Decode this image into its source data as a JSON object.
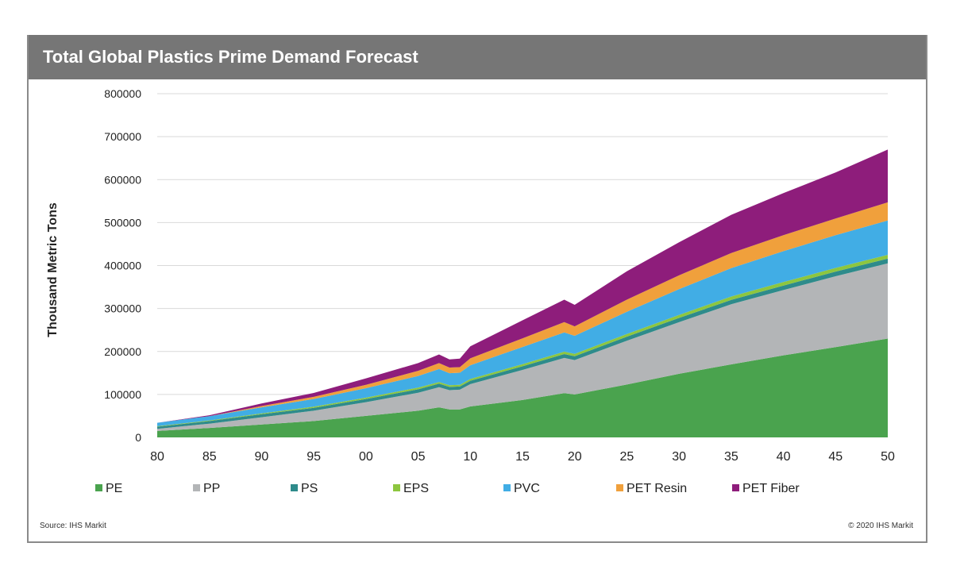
{
  "chart_data": {
    "type": "area",
    "stacked": true,
    "title": "Total Global Plastics Prime Demand Forecast",
    "xlabel": "",
    "ylabel": "Thousand Metric Tons",
    "x_tick_labels": [
      "80",
      "85",
      "90",
      "95",
      "00",
      "05",
      "10",
      "15",
      "20",
      "25",
      "30",
      "35",
      "40",
      "45",
      "50"
    ],
    "x_tick_years": [
      1980,
      1985,
      1990,
      1995,
      2000,
      2005,
      2010,
      2015,
      2020,
      2025,
      2030,
      2035,
      2040,
      2045,
      2050
    ],
    "y_ticks": [
      0,
      100000,
      200000,
      300000,
      400000,
      500000,
      600000,
      700000,
      800000
    ],
    "xlim": [
      1980,
      2050
    ],
    "ylim": [
      0,
      800000
    ],
    "grid": "horizontal",
    "legend_position": "bottom",
    "x": [
      1980,
      1985,
      1990,
      1995,
      2000,
      2005,
      2007,
      2008,
      2009,
      2010,
      2015,
      2019,
      2020,
      2025,
      2030,
      2035,
      2040,
      2045,
      2050
    ],
    "series": [
      {
        "name": "PE",
        "color": "#4aa34e",
        "values": [
          15000,
          22000,
          30000,
          38000,
          50000,
          62000,
          70000,
          65000,
          65000,
          72000,
          87000,
          103000,
          100000,
          123000,
          148000,
          170000,
          191000,
          210000,
          230000
        ]
      },
      {
        "name": "PP",
        "color": "#b3b5b7",
        "values": [
          5000,
          10000,
          17000,
          24000,
          32000,
          42000,
          47000,
          45000,
          46000,
          52000,
          70000,
          82000,
          80000,
          102000,
          120000,
          140000,
          152000,
          165000,
          175000
        ]
      },
      {
        "name": "PS",
        "color": "#2e8b8b",
        "values": [
          5000,
          6000,
          7000,
          7000,
          7500,
          8000,
          8000,
          7500,
          7500,
          8000,
          8500,
          9000,
          9000,
          9500,
          10000,
          10000,
          10500,
          11000,
          11000
        ]
      },
      {
        "name": "EPS",
        "color": "#8dc63f",
        "values": [
          1000,
          1500,
          2000,
          2500,
          3000,
          4000,
          4000,
          4000,
          4000,
          4000,
          5000,
          5500,
          5500,
          6000,
          7000,
          8000,
          8000,
          8500,
          9000
        ]
      },
      {
        "name": "PVC",
        "color": "#41ade5",
        "values": [
          8000,
          10000,
          14000,
          18000,
          22000,
          27000,
          30000,
          28000,
          28000,
          32000,
          40000,
          45000,
          42000,
          52000,
          60000,
          66000,
          72000,
          76000,
          80000
        ]
      },
      {
        "name": "PET Resin",
        "color": "#f0a03c",
        "values": [
          0,
          0,
          3000,
          5000,
          8000,
          12000,
          14000,
          13000,
          13000,
          16000,
          20000,
          24000,
          22000,
          28000,
          32000,
          35000,
          37000,
          39000,
          42000
        ]
      },
      {
        "name": "PET Fiber",
        "color": "#8e1d7b",
        "values": [
          0,
          2000,
          6000,
          9000,
          15000,
          18000,
          20000,
          19000,
          20000,
          28000,
          42000,
          52000,
          50000,
          66000,
          77000,
          89000,
          98000,
          107000,
          123000
        ]
      }
    ]
  },
  "footer": {
    "source": "Source:  IHS Markit",
    "copyright": "© 2020  IHS Markit"
  }
}
